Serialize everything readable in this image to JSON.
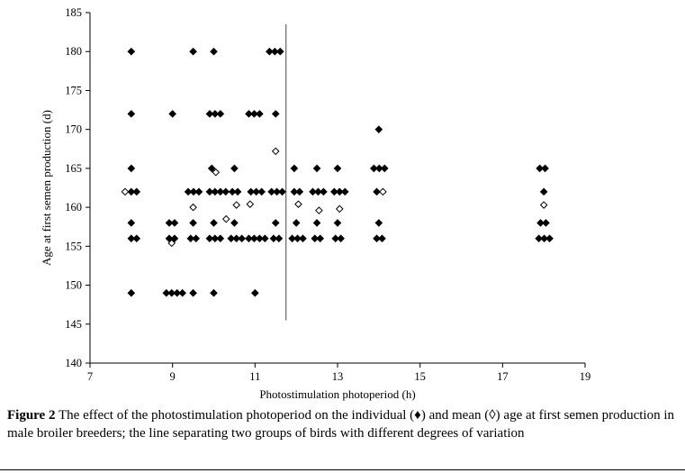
{
  "figure": {
    "caption_label": "Figure 2",
    "caption_text": "The effect of the photostimulation photoperiod on the individual (♦) and mean (◊) age at first semen production in male broiler breeders; the line separating two groups of birds with different degrees of variation"
  },
  "chart_data": {
    "type": "scatter",
    "title": "",
    "xlabel": "Photostimulation photoperiod (h)",
    "ylabel": "Age at first semen production (d)",
    "xlim": [
      7,
      19
    ],
    "ylim": [
      140,
      185
    ],
    "xticks": [
      7,
      9,
      11,
      13,
      15,
      17,
      19
    ],
    "yticks": [
      140,
      145,
      150,
      155,
      160,
      165,
      170,
      175,
      180,
      185
    ],
    "grid": false,
    "legend": "none",
    "separator_line": {
      "x": 11.75,
      "y1": 145.5,
      "y2": 183.5,
      "color": "#666666"
    },
    "marker_color": "#000000",
    "series": [
      {
        "name": "individual",
        "marker": "filled-diamond",
        "points": [
          [
            8,
            180
          ],
          [
            8,
            172
          ],
          [
            8,
            165
          ],
          [
            8.0,
            162
          ],
          [
            8.13,
            162
          ],
          [
            8,
            158
          ],
          [
            8,
            156
          ],
          [
            8.13,
            156
          ],
          [
            8,
            149
          ],
          [
            9,
            172
          ],
          [
            8.92,
            158
          ],
          [
            9.05,
            158
          ],
          [
            8.92,
            156
          ],
          [
            9.05,
            156
          ],
          [
            8.85,
            149
          ],
          [
            8.98,
            149
          ],
          [
            9.11,
            149
          ],
          [
            9.24,
            149
          ],
          [
            9.5,
            180
          ],
          [
            9.38,
            162
          ],
          [
            9.51,
            162
          ],
          [
            9.64,
            162
          ],
          [
            9.5,
            158
          ],
          [
            9.44,
            156
          ],
          [
            9.57,
            156
          ],
          [
            9.5,
            149
          ],
          [
            10,
            180
          ],
          [
            9.9,
            172
          ],
          [
            10.03,
            172
          ],
          [
            10.16,
            172
          ],
          [
            9.95,
            165
          ],
          [
            9.9,
            162
          ],
          [
            10.03,
            162
          ],
          [
            10.16,
            162
          ],
          [
            10.29,
            162
          ],
          [
            10,
            158
          ],
          [
            9.9,
            156
          ],
          [
            10.03,
            156
          ],
          [
            10.16,
            156
          ],
          [
            10,
            149
          ],
          [
            10.5,
            165
          ],
          [
            10.45,
            162
          ],
          [
            10.58,
            162
          ],
          [
            10.5,
            158
          ],
          [
            10.42,
            156
          ],
          [
            10.55,
            156
          ],
          [
            10.68,
            156
          ],
          [
            10.85,
            172
          ],
          [
            10.98,
            172
          ],
          [
            11.11,
            172
          ],
          [
            10.9,
            162
          ],
          [
            11.03,
            162
          ],
          [
            11.16,
            162
          ],
          [
            10.85,
            156
          ],
          [
            10.98,
            156
          ],
          [
            11.11,
            156
          ],
          [
            11.24,
            156
          ],
          [
            11,
            149
          ],
          [
            11.35,
            180
          ],
          [
            11.48,
            180
          ],
          [
            11.61,
            180
          ],
          [
            11.5,
            172
          ],
          [
            11.4,
            162
          ],
          [
            11.53,
            162
          ],
          [
            11.66,
            162
          ],
          [
            11.5,
            158
          ],
          [
            11.45,
            156
          ],
          [
            11.58,
            156
          ],
          [
            11.95,
            165
          ],
          [
            11.95,
            162
          ],
          [
            12.08,
            162
          ],
          [
            12,
            158
          ],
          [
            11.9,
            156
          ],
          [
            12.03,
            156
          ],
          [
            12.16,
            156
          ],
          [
            12.5,
            165
          ],
          [
            12.4,
            162
          ],
          [
            12.53,
            162
          ],
          [
            12.66,
            162
          ],
          [
            12.5,
            158
          ],
          [
            12.45,
            156
          ],
          [
            12.58,
            156
          ],
          [
            13,
            165
          ],
          [
            12.92,
            162
          ],
          [
            13.05,
            162
          ],
          [
            13.18,
            162
          ],
          [
            13,
            158
          ],
          [
            12.95,
            156
          ],
          [
            13.08,
            156
          ],
          [
            14,
            170
          ],
          [
            13.88,
            165
          ],
          [
            14.01,
            165
          ],
          [
            14.14,
            165
          ],
          [
            13.95,
            162
          ],
          [
            14,
            158
          ],
          [
            13.95,
            156
          ],
          [
            14.08,
            156
          ],
          [
            17.9,
            165
          ],
          [
            18.03,
            165
          ],
          [
            18,
            162
          ],
          [
            17.92,
            158
          ],
          [
            18.05,
            158
          ],
          [
            17.88,
            156
          ],
          [
            18.01,
            156
          ],
          [
            18.14,
            156
          ]
        ]
      },
      {
        "name": "mean",
        "marker": "open-diamond",
        "points": [
          [
            7.85,
            162
          ],
          [
            8.98,
            155.4
          ],
          [
            9.5,
            160
          ],
          [
            10.05,
            164.5
          ],
          [
            10.3,
            158.5
          ],
          [
            10.55,
            160.3
          ],
          [
            10.88,
            160.4
          ],
          [
            11.5,
            167.2
          ],
          [
            12.05,
            160.4
          ],
          [
            12.55,
            159.6
          ],
          [
            13.05,
            159.8
          ],
          [
            14.1,
            162
          ],
          [
            18,
            160.3
          ]
        ]
      }
    ]
  }
}
